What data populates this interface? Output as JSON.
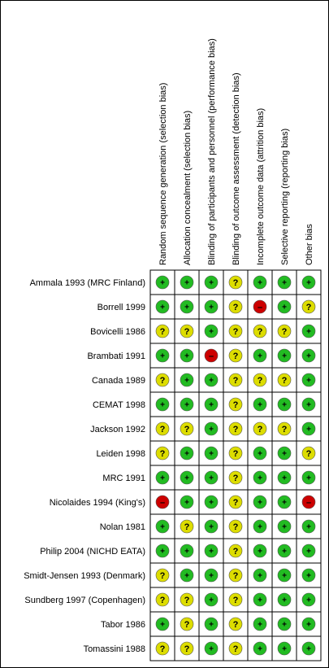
{
  "chart_data": {
    "type": "table",
    "domains": [
      "Random sequence generation (selection bias)",
      "Allocation concealment (selection bias)",
      "Blinding of participants and personnel (performance bias)",
      "Blinding of outcome assessment (detection bias)",
      "Incomplete outcome data (attrition bias)",
      "Selective reporting (reporting bias)",
      "Other bias"
    ],
    "studies": [
      {
        "name": "Ammala 1993 (MRC Finland)",
        "ratings": [
          "low",
          "low",
          "low",
          "unclear",
          "low",
          "low",
          "low"
        ]
      },
      {
        "name": "Borrell 1999",
        "ratings": [
          "low",
          "low",
          "low",
          "unclear",
          "high",
          "low",
          "unclear"
        ]
      },
      {
        "name": "Bovicelli 1986",
        "ratings": [
          "unclear",
          "unclear",
          "low",
          "unclear",
          "unclear",
          "unclear",
          "low"
        ]
      },
      {
        "name": "Brambati 1991",
        "ratings": [
          "low",
          "low",
          "high",
          "unclear",
          "low",
          "low",
          "low"
        ]
      },
      {
        "name": "Canada 1989",
        "ratings": [
          "unclear",
          "low",
          "low",
          "unclear",
          "unclear",
          "unclear",
          "low"
        ]
      },
      {
        "name": "CEMAT 1998",
        "ratings": [
          "low",
          "low",
          "low",
          "unclear",
          "low",
          "low",
          "low"
        ]
      },
      {
        "name": "Jackson 1992",
        "ratings": [
          "unclear",
          "unclear",
          "low",
          "unclear",
          "unclear",
          "unclear",
          "low"
        ]
      },
      {
        "name": "Leiden 1998",
        "ratings": [
          "unclear",
          "low",
          "low",
          "unclear",
          "low",
          "low",
          "unclear"
        ]
      },
      {
        "name": "MRC 1991",
        "ratings": [
          "low",
          "low",
          "low",
          "unclear",
          "low",
          "low",
          "low"
        ]
      },
      {
        "name": "Nicolaides 1994 (King's)",
        "ratings": [
          "high",
          "low",
          "low",
          "unclear",
          "low",
          "low",
          "high"
        ]
      },
      {
        "name": "Nolan 1981",
        "ratings": [
          "low",
          "unclear",
          "low",
          "unclear",
          "low",
          "low",
          "low"
        ]
      },
      {
        "name": "Philip 2004 (NICHD EATA)",
        "ratings": [
          "low",
          "low",
          "low",
          "unclear",
          "low",
          "low",
          "low"
        ]
      },
      {
        "name": "Smidt-Jensen 1993 (Denmark)",
        "ratings": [
          "unclear",
          "low",
          "low",
          "unclear",
          "low",
          "low",
          "low"
        ]
      },
      {
        "name": "Sundberg 1997 (Copenhagen)",
        "ratings": [
          "unclear",
          "unclear",
          "low",
          "unclear",
          "low",
          "low",
          "low"
        ]
      },
      {
        "name": "Tabor 1986",
        "ratings": [
          "low",
          "unclear",
          "low",
          "unclear",
          "low",
          "low",
          "low"
        ]
      },
      {
        "name": "Tomassini 1988",
        "ratings": [
          "unclear",
          "unclear",
          "low",
          "unclear",
          "low",
          "low",
          "low"
        ]
      }
    ],
    "rating_legend": {
      "low": {
        "symbol": "+",
        "color": "#22bb22"
      },
      "unclear": {
        "symbol": "?",
        "color": "#dddd00"
      },
      "high": {
        "symbol": "–",
        "color": "#cc0000"
      }
    },
    "grid": true
  }
}
